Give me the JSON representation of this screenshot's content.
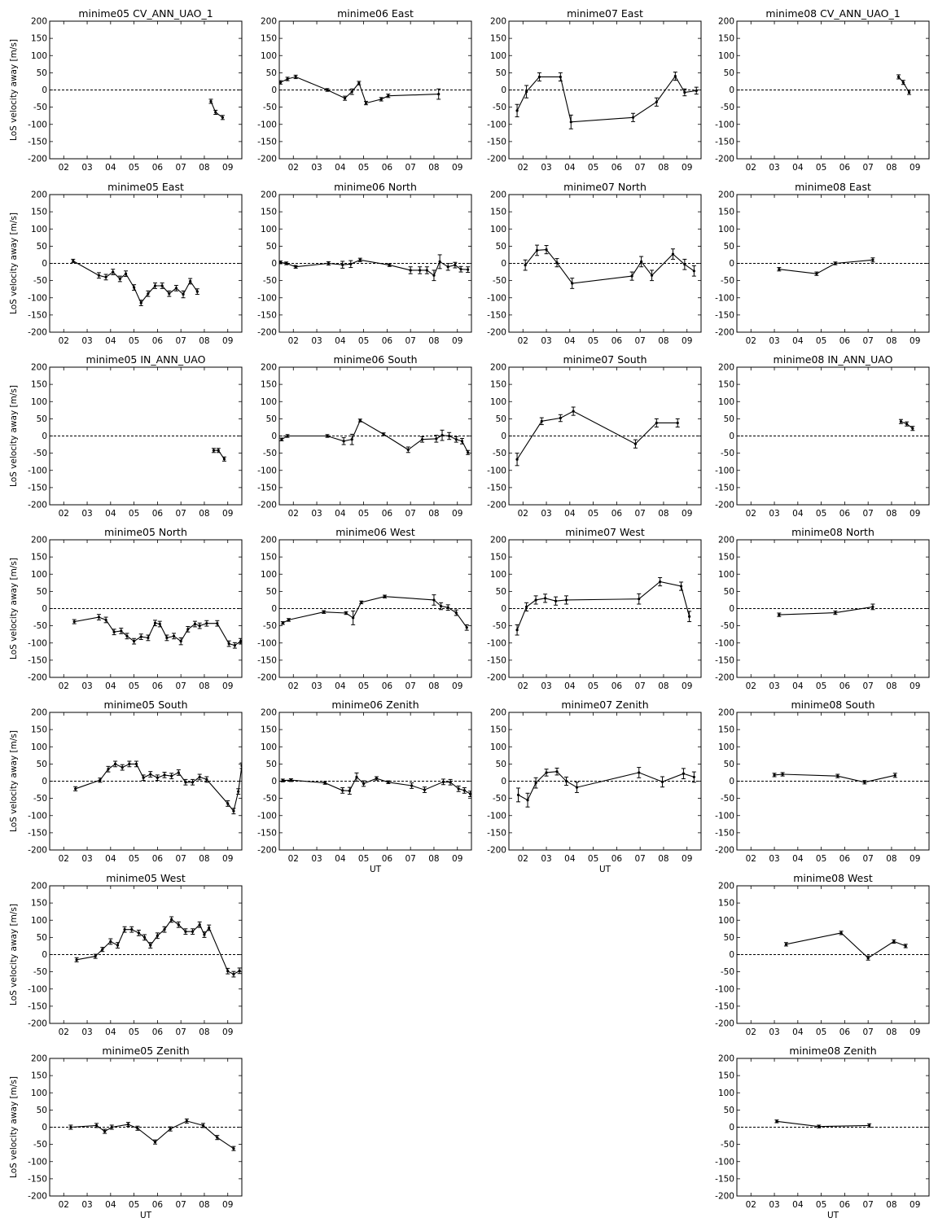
{
  "figure": {
    "ylabel": "LoS velocity away [m/s]",
    "xlabel": "UT"
  },
  "axis": {
    "xlim": [
      1.4,
      9.6
    ],
    "ylim": [
      -200,
      200
    ],
    "xticks": [
      2,
      3,
      4,
      5,
      6,
      7,
      8,
      9
    ],
    "xtick_labels": [
      "02",
      "03",
      "04",
      "05",
      "06",
      "07",
      "08",
      "09"
    ],
    "yticks": [
      -200,
      -150,
      -100,
      -50,
      0,
      50,
      100,
      150,
      200
    ],
    "ytick_labels": [
      "-200",
      "-150",
      "-100",
      "-50",
      "0",
      "50",
      "100",
      "150",
      "200"
    ],
    "zero_line": "dashed",
    "grid": false
  },
  "chart_data": [
    {
      "type": "line",
      "col": 0,
      "row": 0,
      "title": "minime05 CV_ANN_UAO_1",
      "x": [
        8.28,
        8.48,
        8.78
      ],
      "y": [
        -33,
        -65,
        -80
      ],
      "err": [
        6,
        6,
        6
      ]
    },
    {
      "type": "line",
      "col": 1,
      "row": 0,
      "title": "minime06 East",
      "x": [
        1.45,
        1.75,
        2.1,
        3.45,
        4.2,
        4.5,
        4.8,
        5.1,
        5.75,
        6.05,
        8.2
      ],
      "y": [
        22,
        32,
        38,
        0,
        -24,
        -5,
        20,
        -38,
        -27,
        -17,
        -12
      ],
      "err": [
        5,
        5,
        5,
        4,
        6,
        8,
        5,
        5,
        5,
        5,
        15
      ]
    },
    {
      "type": "line",
      "col": 2,
      "row": 0,
      "title": "minime07 East",
      "x": [
        1.75,
        2.15,
        2.7,
        3.6,
        4.05,
        6.7,
        7.7,
        8.5,
        8.9,
        9.4
      ],
      "y": [
        -60,
        -5,
        38,
        38,
        -93,
        -80,
        -35,
        40,
        -7,
        -2
      ],
      "err": [
        18,
        18,
        12,
        12,
        20,
        12,
        12,
        12,
        10,
        10
      ]
    },
    {
      "type": "line",
      "col": 3,
      "row": 0,
      "title": "minime08 CV_ANN_UAO_1",
      "x": [
        8.3,
        8.5,
        8.75
      ],
      "y": [
        38,
        22,
        -7
      ],
      "err": [
        6,
        6,
        6
      ]
    },
    {
      "type": "line",
      "col": 0,
      "row": 1,
      "title": "minime05 East",
      "x": [
        2.4,
        3.5,
        3.8,
        4.1,
        4.4,
        4.65,
        5.0,
        5.3,
        5.6,
        5.9,
        6.2,
        6.5,
        6.8,
        7.1,
        7.4,
        7.7
      ],
      "y": [
        7,
        -35,
        -40,
        -25,
        -45,
        -30,
        -70,
        -115,
        -88,
        -65,
        -65,
        -88,
        -72,
        -90,
        -52,
        -82
      ],
      "err": [
        5,
        8,
        8,
        8,
        8,
        8,
        8,
        8,
        8,
        8,
        8,
        8,
        8,
        10,
        8,
        8
      ]
    },
    {
      "type": "line",
      "col": 1,
      "row": 1,
      "title": "minime06 North",
      "x": [
        1.45,
        1.7,
        2.1,
        3.5,
        4.1,
        4.45,
        4.85,
        6.1,
        7.0,
        7.4,
        7.7,
        8.0,
        8.25,
        8.6,
        8.9,
        9.15,
        9.45
      ],
      "y": [
        3,
        0,
        -10,
        0,
        -4,
        -2,
        10,
        -5,
        -20,
        -20,
        -20,
        -35,
        5,
        -10,
        -5,
        -17,
        -18
      ],
      "err": [
        4,
        4,
        4,
        5,
        10,
        10,
        5,
        4,
        10,
        10,
        10,
        15,
        20,
        10,
        8,
        8,
        8
      ]
    },
    {
      "type": "line",
      "col": 2,
      "row": 1,
      "title": "minime07 North",
      "x": [
        2.1,
        2.6,
        3.0,
        3.45,
        4.1,
        6.65,
        7.05,
        7.5,
        8.4,
        8.9,
        9.3
      ],
      "y": [
        -5,
        38,
        40,
        2,
        -58,
        -37,
        5,
        -35,
        27,
        -3,
        -22
      ],
      "err": [
        15,
        15,
        12,
        12,
        15,
        12,
        15,
        15,
        15,
        15,
        15
      ]
    },
    {
      "type": "line",
      "col": 3,
      "row": 1,
      "title": "minime08 East",
      "x": [
        3.2,
        4.8,
        5.6,
        7.2
      ],
      "y": [
        -17,
        -30,
        0,
        10
      ],
      "err": [
        5,
        5,
        4,
        6
      ]
    },
    {
      "type": "line",
      "col": 0,
      "row": 2,
      "title": "minime05 IN_ANN_UAO",
      "x": [
        8.4,
        8.6,
        8.85
      ],
      "y": [
        -42,
        -42,
        -67
      ],
      "err": [
        6,
        6,
        6
      ]
    },
    {
      "type": "line",
      "col": 1,
      "row": 2,
      "title": "minime06 South",
      "x": [
        1.5,
        1.75,
        3.45,
        4.15,
        4.5,
        4.85,
        5.85,
        6.9,
        7.5,
        8.1,
        8.35,
        8.65,
        8.95,
        9.2,
        9.45
      ],
      "y": [
        -10,
        0,
        0,
        -15,
        -10,
        45,
        5,
        -40,
        -10,
        -8,
        2,
        0,
        -10,
        -15,
        -48
      ],
      "err": [
        4,
        4,
        4,
        10,
        15,
        4,
        4,
        8,
        8,
        10,
        15,
        10,
        8,
        8,
        6
      ]
    },
    {
      "type": "line",
      "col": 2,
      "row": 2,
      "title": "minime07 South",
      "x": [
        1.75,
        2.8,
        3.6,
        4.15,
        6.8,
        7.7,
        8.6
      ],
      "y": [
        -68,
        43,
        52,
        72,
        -23,
        38,
        38
      ],
      "err": [
        18,
        10,
        10,
        12,
        12,
        12,
        12
      ]
    },
    {
      "type": "line",
      "col": 3,
      "row": 2,
      "title": "minime08 IN_ANN_UAO",
      "x": [
        8.4,
        8.65,
        8.9
      ],
      "y": [
        42,
        35,
        22
      ],
      "err": [
        6,
        6,
        6
      ]
    },
    {
      "type": "line",
      "col": 0,
      "row": 3,
      "title": "minime05 North",
      "x": [
        2.45,
        3.5,
        3.8,
        4.15,
        4.45,
        4.7,
        5.0,
        5.3,
        5.6,
        5.9,
        6.1,
        6.4,
        6.7,
        7.0,
        7.3,
        7.6,
        7.8,
        8.1,
        8.55,
        9.05,
        9.3,
        9.55
      ],
      "y": [
        -38,
        -25,
        -33,
        -68,
        -65,
        -80,
        -95,
        -82,
        -85,
        -42,
        -45,
        -85,
        -80,
        -95,
        -60,
        -45,
        -50,
        -43,
        -43,
        -102,
        -107,
        -95
      ],
      "err": [
        6,
        8,
        8,
        8,
        8,
        8,
        8,
        8,
        8,
        8,
        8,
        8,
        8,
        10,
        8,
        8,
        8,
        8,
        8,
        8,
        8,
        8
      ]
    },
    {
      "type": "line",
      "col": 1,
      "row": 3,
      "title": "minime06 West",
      "x": [
        1.55,
        1.8,
        3.3,
        4.25,
        4.55,
        4.9,
        5.9,
        8.0,
        8.3,
        8.6,
        8.95,
        9.4
      ],
      "y": [
        -42,
        -33,
        -10,
        -13,
        -27,
        18,
        35,
        25,
        7,
        3,
        -12,
        -55
      ],
      "err": [
        4,
        4,
        4,
        4,
        20,
        4,
        4,
        15,
        10,
        8,
        8,
        8
      ]
    },
    {
      "type": "line",
      "col": 2,
      "row": 3,
      "title": "minime07 West",
      "x": [
        1.75,
        2.15,
        2.55,
        2.95,
        3.4,
        3.85,
        6.95,
        7.85,
        8.75,
        9.1
      ],
      "y": [
        -62,
        5,
        25,
        30,
        22,
        25,
        28,
        78,
        65,
        -23
      ],
      "err": [
        15,
        12,
        12,
        12,
        12,
        12,
        15,
        12,
        12,
        15
      ]
    },
    {
      "type": "line",
      "col": 3,
      "row": 3,
      "title": "minime08 North",
      "x": [
        3.2,
        5.6,
        7.2
      ],
      "y": [
        -18,
        -12,
        5
      ],
      "err": [
        5,
        5,
        8
      ]
    },
    {
      "type": "line",
      "col": 0,
      "row": 4,
      "title": "minime05 South",
      "x": [
        2.5,
        3.55,
        3.9,
        4.2,
        4.5,
        4.8,
        5.1,
        5.4,
        5.7,
        6.0,
        6.3,
        6.6,
        6.9,
        7.2,
        7.5,
        7.8,
        8.1,
        9.0,
        9.25,
        9.45,
        9.6
      ],
      "y": [
        -22,
        3,
        35,
        50,
        40,
        50,
        50,
        10,
        20,
        10,
        18,
        15,
        25,
        -3,
        -3,
        12,
        5,
        -65,
        -87,
        -30,
        45
      ],
      "err": [
        6,
        6,
        8,
        8,
        8,
        8,
        8,
        8,
        8,
        8,
        8,
        8,
        8,
        8,
        8,
        8,
        8,
        8,
        8,
        8,
        8
      ]
    },
    {
      "type": "line",
      "col": 1,
      "row": 4,
      "title": "minime06 Zenith",
      "x": [
        1.55,
        1.9,
        3.35,
        4.1,
        4.4,
        4.7,
        5.0,
        5.55,
        6.05,
        7.05,
        7.6,
        8.4,
        8.7,
        9.05,
        9.3,
        9.55
      ],
      "y": [
        2,
        3,
        -5,
        -27,
        -28,
        12,
        -7,
        8,
        -3,
        -13,
        -25,
        -2,
        -3,
        -22,
        -27,
        -37
      ],
      "err": [
        4,
        4,
        4,
        8,
        10,
        12,
        8,
        5,
        4,
        8,
        8,
        8,
        8,
        8,
        8,
        8
      ]
    },
    {
      "type": "line",
      "col": 2,
      "row": 4,
      "title": "minime07 Zenith",
      "x": [
        1.8,
        2.2,
        2.55,
        3.0,
        3.45,
        3.85,
        4.3,
        6.95,
        7.95,
        8.85,
        9.3
      ],
      "y": [
        -40,
        -55,
        -5,
        25,
        28,
        0,
        -18,
        25,
        -2,
        22,
        12
      ],
      "err": [
        20,
        20,
        15,
        10,
        10,
        12,
        15,
        15,
        15,
        15,
        15
      ]
    },
    {
      "type": "line",
      "col": 3,
      "row": 4,
      "title": "minime08 South",
      "x": [
        3.0,
        3.35,
        5.7,
        6.85,
        8.15
      ],
      "y": [
        18,
        20,
        15,
        -3,
        17
      ],
      "err": [
        5,
        5,
        5,
        5,
        6
      ]
    },
    {
      "type": "line",
      "col": 0,
      "row": 5,
      "title": "minime05 West",
      "x": [
        2.55,
        3.35,
        3.65,
        4.0,
        4.3,
        4.6,
        4.9,
        5.2,
        5.45,
        5.7,
        6.0,
        6.3,
        6.6,
        6.9,
        7.2,
        7.5,
        7.8,
        8.0,
        8.2,
        9.0,
        9.25,
        9.5
      ],
      "y": [
        -15,
        -5,
        15,
        38,
        27,
        73,
        73,
        63,
        50,
        27,
        55,
        73,
        102,
        87,
        67,
        67,
        87,
        58,
        78,
        -48,
        -57,
        -47
      ],
      "err": [
        6,
        6,
        6,
        8,
        8,
        8,
        8,
        8,
        8,
        8,
        8,
        8,
        8,
        8,
        8,
        8,
        8,
        8,
        8,
        8,
        8,
        8
      ]
    },
    {
      "type": "line",
      "col": 3,
      "row": 5,
      "title": "minime08 West",
      "x": [
        3.5,
        5.85,
        7.0,
        8.1,
        8.6
      ],
      "y": [
        30,
        63,
        -10,
        38,
        25
      ],
      "err": [
        5,
        5,
        6,
        5,
        5
      ]
    },
    {
      "type": "line",
      "col": 0,
      "row": 6,
      "title": "minime05 Zenith",
      "x": [
        2.3,
        3.4,
        3.75,
        4.05,
        4.75,
        5.15,
        5.9,
        6.55,
        7.25,
        7.95,
        8.55,
        9.25
      ],
      "y": [
        0,
        5,
        -12,
        0,
        8,
        -3,
        -43,
        -5,
        18,
        5,
        -30,
        -62
      ],
      "err": [
        6,
        6,
        6,
        6,
        6,
        6,
        6,
        6,
        6,
        6,
        6,
        6
      ]
    },
    {
      "type": "line",
      "col": 3,
      "row": 6,
      "title": "minime08 Zenith",
      "x": [
        3.1,
        4.9,
        7.05
      ],
      "y": [
        17,
        2,
        5
      ],
      "err": [
        4,
        4,
        5
      ]
    }
  ]
}
